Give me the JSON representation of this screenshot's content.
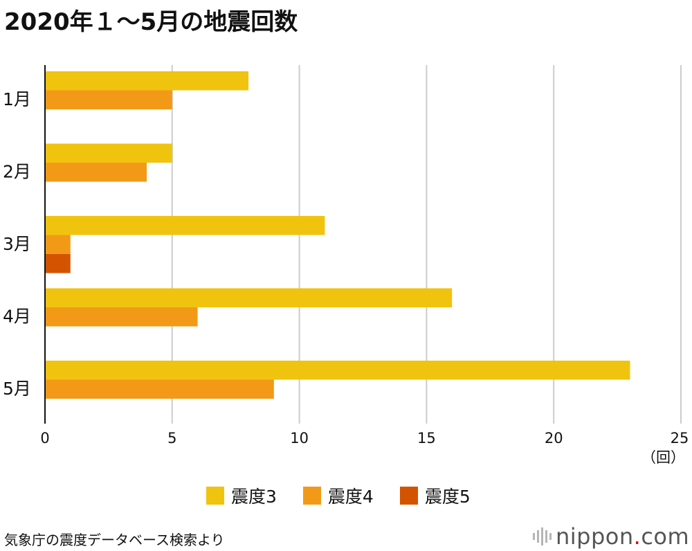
{
  "title": "2020年１〜5月の地震回数",
  "chart_data": {
    "type": "bar",
    "orientation": "horizontal",
    "categories": [
      "1月",
      "2月",
      "3月",
      "4月",
      "5月"
    ],
    "series": [
      {
        "name": "震度3",
        "color": "#f0c30f",
        "values": [
          8,
          5,
          11,
          16,
          23
        ]
      },
      {
        "name": "震度4",
        "color": "#f29a17",
        "values": [
          5,
          4,
          1,
          6,
          9
        ]
      },
      {
        "name": "震度5",
        "color": "#d35400",
        "values": [
          0,
          0,
          1,
          0,
          0
        ]
      }
    ],
    "xticks": [
      "0",
      "5",
      "10",
      "15",
      "20",
      "25"
    ],
    "xlim": [
      0,
      25
    ],
    "xunit": "（回）",
    "grid": true,
    "legend_position": "bottom"
  },
  "source": "気象庁の震度データベース検索より",
  "logo": {
    "main": "nippon",
    "dot": ".",
    "suffix": "com"
  }
}
